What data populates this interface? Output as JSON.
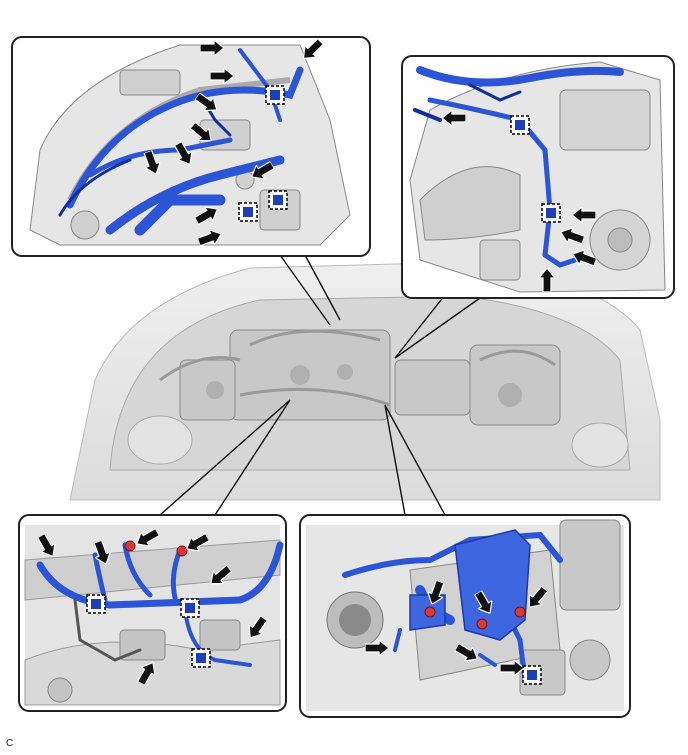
{
  "figure": {
    "code": "C",
    "colors": {
      "harness_blue": "#2c55d6",
      "harness_dark": "#0f2e9a",
      "clamp_red": "#d43a3a",
      "engine_light": "#e6e6e6",
      "engine_mid": "#c4c4c4",
      "engine_dark": "#6e6e6e",
      "callout_border": "#222222",
      "arrow": "#111111"
    },
    "callouts": [
      {
        "id": "top-left",
        "content": "engine-top-wire-harness",
        "arrow_count": 9,
        "clip_count": 3
      },
      {
        "id": "top-right",
        "content": "engine-side-wire-harness",
        "arrow_count": 5,
        "clip_count": 2
      },
      {
        "id": "bottom-left",
        "content": "injector-wire-harness",
        "arrow_count": 7,
        "clip_count": 3
      },
      {
        "id": "bottom-right",
        "content": "throttle-side-wire-harness",
        "arrow_count": 6,
        "clip_count": 1
      }
    ],
    "icons": [
      "pointer-arrow-icon",
      "clip-marker-icon",
      "clamp-bolt-icon"
    ]
  }
}
